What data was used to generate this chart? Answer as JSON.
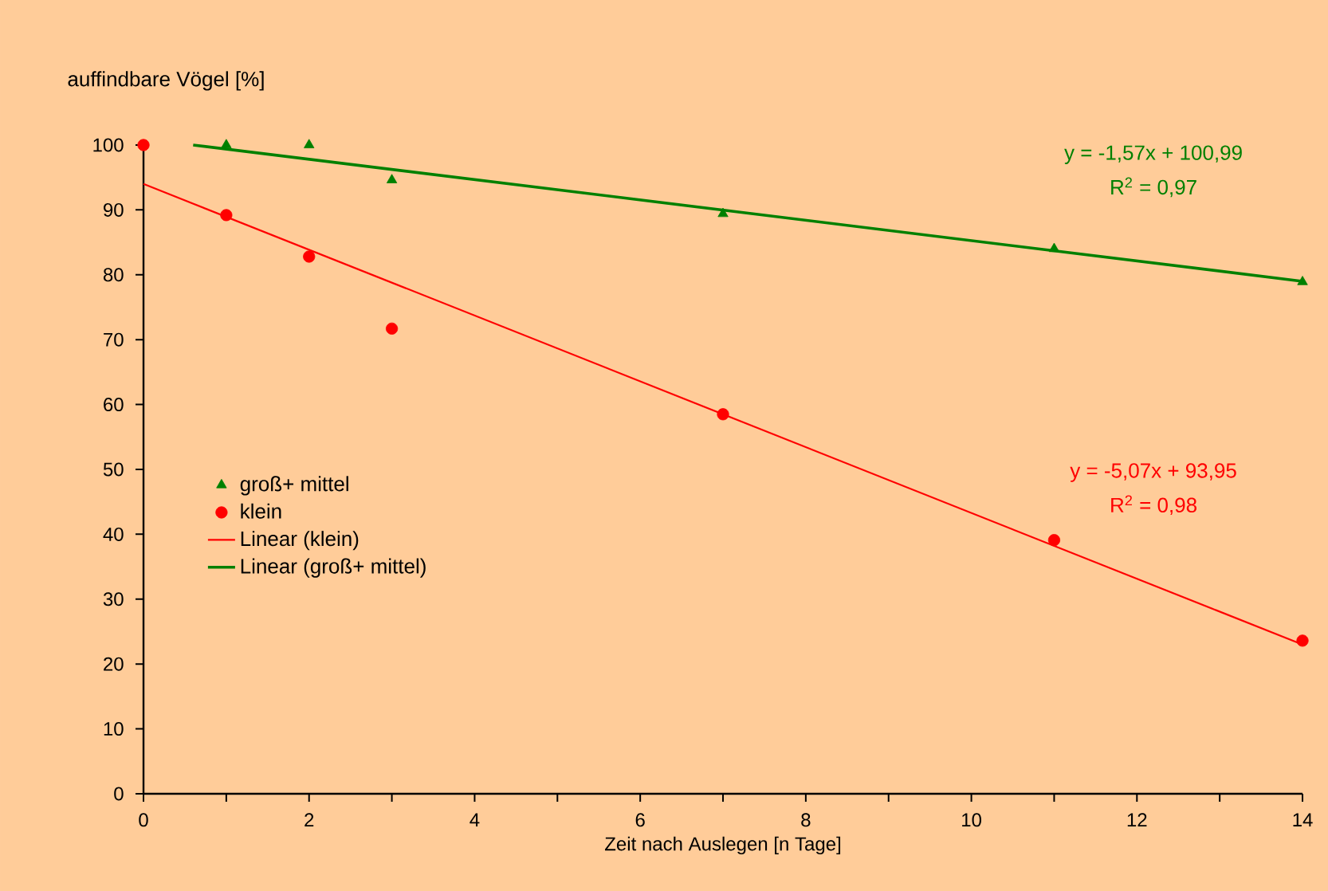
{
  "chart_data": {
    "type": "scatter",
    "xlabel": "Zeit nach Auslegen [n Tage]",
    "ylabel": "auffindbare Vögel [%]",
    "x": [
      0,
      1,
      2,
      3,
      7,
      11,
      14
    ],
    "series": [
      {
        "name": "groß+ mittel",
        "color": "#008000",
        "marker": "triangle",
        "values": [
          null,
          100,
          100,
          94.6,
          89.4,
          84.0,
          78.9
        ]
      },
      {
        "name": "klein",
        "color": "#ff0000",
        "marker": "circle",
        "values": [
          100,
          89.2,
          82.8,
          71.7,
          58.5,
          39.1,
          23.6
        ]
      },
      {
        "name": "Linear (klein)",
        "type": "line",
        "color": "#ff0000",
        "marker": "none",
        "x": [
          0,
          14
        ],
        "values": [
          94,
          23
        ]
      },
      {
        "name": "Linear (groß+ mittel)",
        "type": "line",
        "color": "#008000",
        "marker": "none",
        "x": [
          0.6,
          14
        ],
        "values": [
          100,
          79
        ]
      }
    ],
    "xlim": [
      0,
      14
    ],
    "ylim": [
      0,
      100
    ],
    "xticks": [
      0,
      {
        "value": 1,
        "label": null
      },
      2,
      {
        "value": 3,
        "label": null
      },
      4,
      {
        "value": 5,
        "label": null
      },
      6,
      {
        "value": 7,
        "label": null
      },
      8,
      {
        "value": 9,
        "label": null
      },
      10,
      {
        "value": 11,
        "label": null
      },
      12,
      {
        "value": 13,
        "label": null
      },
      14
    ],
    "yticks": [
      0,
      10,
      20,
      30,
      40,
      50,
      60,
      70,
      80,
      90,
      100
    ],
    "grid": false,
    "legend": "left",
    "annotations": [
      "y = -1,57x + 100,99",
      "R$^{2}$ = 0,97",
      "y = -5,07x + 93,95",
      "R$^{2}$ = 0,98"
    ]
  }
}
